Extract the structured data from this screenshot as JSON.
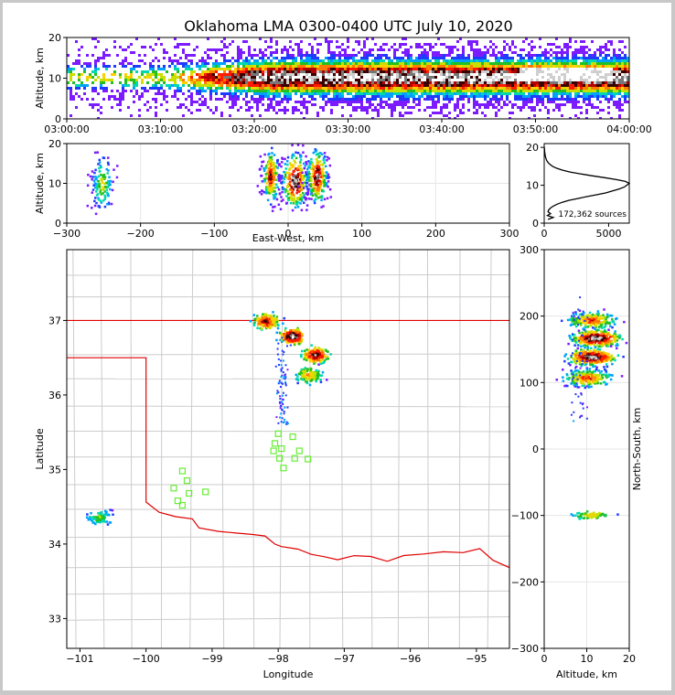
{
  "figure": {
    "title": "Oklahoma LMA 0300-0400 UTC July 10, 2020"
  },
  "chart_data": [
    {
      "type": "heatmap",
      "panel": "time-altitude",
      "xlabel": "",
      "ylabel": "Altitude, km",
      "xlim": [
        0,
        60
      ],
      "ylim": [
        0,
        20
      ],
      "xticks": [
        0,
        10,
        20,
        30,
        40,
        50,
        60
      ],
      "xtick_labels": [
        "03:00:00",
        "03:10:00",
        "03:20:00",
        "03:30:00",
        "03:40:00",
        "03:50:00",
        "04:00:00"
      ],
      "yticks": [
        0,
        10,
        20
      ],
      "ytick_labels": [
        "0",
        "10",
        "20"
      ],
      "core": {
        "from_min": 22,
        "to_min": 60,
        "alt_km": 10.5
      },
      "grid": false
    },
    {
      "type": "heatmap",
      "panel": "east-west-altitude",
      "xlabel": "East-West, km",
      "ylabel": "Altitude, km",
      "xlim": [
        -300,
        300
      ],
      "ylim": [
        0,
        20
      ],
      "xticks": [
        -300,
        -200,
        -100,
        0,
        100,
        200,
        300
      ],
      "xtick_labels": [
        "−300",
        "−200",
        "−100",
        "0",
        "100",
        "200",
        "300"
      ],
      "yticks": [
        0,
        10,
        20
      ],
      "ytick_labels": [
        "0",
        "10",
        "20"
      ],
      "clusters": [
        {
          "x_km": -253,
          "width_km": 18,
          "alt_km": 10,
          "intensity": 0.5
        },
        {
          "x_km": -25,
          "width_km": 14,
          "alt_km": 12,
          "intensity": 0.8
        },
        {
          "x_km": 8,
          "width_km": 22,
          "alt_km": 11,
          "intensity": 1.0
        },
        {
          "x_km": 38,
          "width_km": 18,
          "alt_km": 12,
          "intensity": 0.9
        }
      ],
      "grid": true
    },
    {
      "type": "line",
      "panel": "altitude-histogram",
      "xlabel": "",
      "ylabel": "",
      "xlim": [
        0,
        6600
      ],
      "ylim": [
        0,
        21
      ],
      "xticks": [
        0,
        5000
      ],
      "xtick_labels": [
        "0",
        "5000"
      ],
      "yticks": [
        0,
        10,
        20
      ],
      "ytick_labels": [
        "0",
        "10",
        "20"
      ],
      "annotation": "172,362 sources",
      "y": [
        1.0,
        1.5,
        2.0,
        2.5,
        3.0,
        3.5,
        4.0,
        4.5,
        5.0,
        5.5,
        6.0,
        6.5,
        7.0,
        7.5,
        8.0,
        8.5,
        9.0,
        9.5,
        10.0,
        10.5,
        11.0,
        11.5,
        12.0,
        12.5,
        13.0,
        13.5,
        14.0,
        14.5,
        15.0,
        15.5,
        16.0,
        16.5,
        17.0,
        17.5,
        18.0,
        18.5,
        19.0,
        19.5,
        20.0
      ],
      "values": [
        300,
        700,
        250,
        500,
        300,
        350,
        500,
        700,
        1000,
        1400,
        1900,
        2600,
        3300,
        4100,
        4800,
        5300,
        5800,
        6200,
        6400,
        6600,
        6300,
        5600,
        4700,
        3700,
        2800,
        2000,
        1400,
        950,
        650,
        450,
        300,
        200,
        140,
        100,
        70,
        50,
        30,
        20,
        10
      ],
      "grid": false
    },
    {
      "type": "heatmap",
      "panel": "plan-view",
      "xlabel": "Longitude",
      "ylabel": "Latitude",
      "xlim": [
        -101.2,
        -94.5
      ],
      "ylim": [
        32.6,
        37.95
      ],
      "xticks": [
        -101,
        -100,
        -99,
        -98,
        -97,
        -96,
        -95
      ],
      "xtick_labels": [
        "−101",
        "−100",
        "−99",
        "−98",
        "−97",
        "−96",
        "−95"
      ],
      "yticks": [
        33,
        34,
        35,
        36,
        37
      ],
      "ytick_labels": [
        "33",
        "34",
        "35",
        "36",
        "37"
      ],
      "clusters": [
        {
          "lon": -98.2,
          "lat": 37.0,
          "intensity": 0.8
        },
        {
          "lon": -97.8,
          "lat": 36.8,
          "intensity": 1.0
        },
        {
          "lon": -97.45,
          "lat": 36.55,
          "intensity": 0.9
        },
        {
          "lon": -97.55,
          "lat": 36.28,
          "intensity": 0.6
        },
        {
          "lon": -100.72,
          "lat": 34.37,
          "intensity": 0.4
        }
      ],
      "stations": [
        {
          "lon": -99.45,
          "lat": 34.98
        },
        {
          "lon": -99.38,
          "lat": 34.85
        },
        {
          "lon": -99.58,
          "lat": 34.75
        },
        {
          "lon": -99.35,
          "lat": 34.68
        },
        {
          "lon": -99.52,
          "lat": 34.58
        },
        {
          "lon": -99.45,
          "lat": 34.52
        },
        {
          "lon": -99.1,
          "lat": 34.7
        },
        {
          "lon": -98.0,
          "lat": 35.48
        },
        {
          "lon": -97.78,
          "lat": 35.44
        },
        {
          "lon": -98.05,
          "lat": 35.35
        },
        {
          "lon": -97.95,
          "lat": 35.28
        },
        {
          "lon": -98.07,
          "lat": 35.25
        },
        {
          "lon": -97.68,
          "lat": 35.25
        },
        {
          "lon": -97.98,
          "lat": 35.15
        },
        {
          "lon": -97.75,
          "lat": 35.15
        },
        {
          "lon": -97.55,
          "lat": 35.14
        },
        {
          "lon": -97.92,
          "lat": 35.02
        }
      ],
      "grid": true
    },
    {
      "type": "heatmap",
      "panel": "altitude-north-south",
      "xlabel": "Altitude, km",
      "ylabel": "North-South, km",
      "xlim": [
        0,
        20
      ],
      "ylim": [
        -300,
        300
      ],
      "xticks": [
        0,
        10,
        20
      ],
      "xtick_labels": [
        "0",
        "10",
        "20"
      ],
      "yticks": [
        -300,
        -200,
        -100,
        0,
        100,
        200,
        300
      ],
      "ytick_labels": [
        "−300",
        "−200",
        "−100",
        "0",
        "100",
        "200",
        "300"
      ],
      "clusters": [
        {
          "y_km": 195,
          "alt_km": 11,
          "intensity": 0.7
        },
        {
          "y_km": 168,
          "alt_km": 12,
          "intensity": 1.0
        },
        {
          "y_km": 140,
          "alt_km": 11,
          "intensity": 1.0
        },
        {
          "y_km": 108,
          "alt_km": 10,
          "intensity": 0.7
        },
        {
          "y_km": -98,
          "alt_km": 11,
          "intensity": 0.5
        }
      ],
      "grid": true
    }
  ]
}
